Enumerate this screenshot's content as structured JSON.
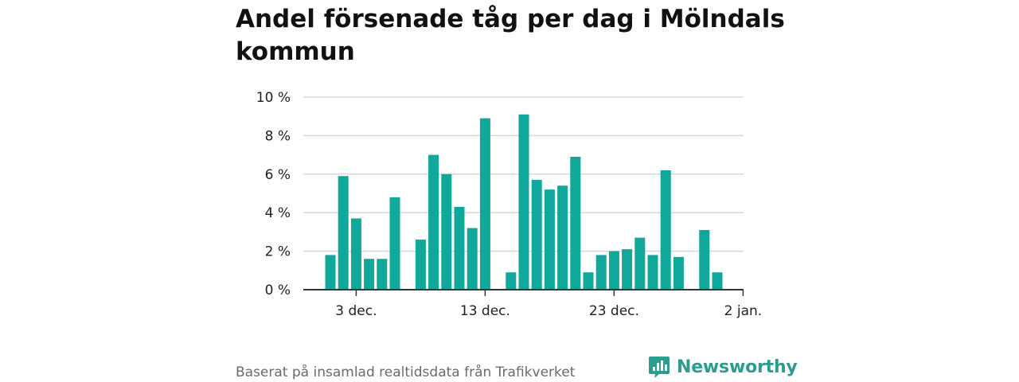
{
  "title": "Andel försenade tåg per dag i Mölndals kommun",
  "footer": {
    "source_text": "Baserat på insamlad realtidsdata från Trafikverket",
    "brand_name": "Newsworthy"
  },
  "colors": {
    "bar": "#0fa89a",
    "grid": "#d9d9d9",
    "axis": "#333333",
    "brand": "#2a9d8f"
  },
  "chart_data": {
    "type": "bar",
    "title": "Andel försenade tåg per dag i Mölndals kommun",
    "xlabel": "",
    "ylabel": "",
    "ylim": [
      0,
      10
    ],
    "y_ticks": [
      0,
      2,
      4,
      6,
      8,
      10
    ],
    "y_tick_labels": [
      "0 %",
      "2 %",
      "4 %",
      "6 %",
      "8 %",
      "10 %"
    ],
    "x_ticks": [
      {
        "date": "2023-12-03",
        "label": "3 dec."
      },
      {
        "date": "2023-12-13",
        "label": "13 dec."
      },
      {
        "date": "2023-12-23",
        "label": "23 dec."
      },
      {
        "date": "2024-01-02",
        "label": "2 jan."
      }
    ],
    "grid": true,
    "categories": [
      "2023-12-01",
      "2023-12-02",
      "2023-12-03",
      "2023-12-04",
      "2023-12-05",
      "2023-12-06",
      "2023-12-07",
      "2023-12-08",
      "2023-12-09",
      "2023-12-10",
      "2023-12-11",
      "2023-12-12",
      "2023-12-13",
      "2023-12-14",
      "2023-12-15",
      "2023-12-16",
      "2023-12-17",
      "2023-12-18",
      "2023-12-19",
      "2023-12-20",
      "2023-12-21",
      "2023-12-22",
      "2023-12-23",
      "2023-12-24",
      "2023-12-25",
      "2023-12-26",
      "2023-12-27",
      "2023-12-28",
      "2023-12-29",
      "2023-12-30",
      "2023-12-31",
      "2024-01-01"
    ],
    "values": [
      1.8,
      5.9,
      3.7,
      1.6,
      1.6,
      4.8,
      null,
      2.6,
      7.0,
      6.0,
      4.3,
      3.2,
      8.9,
      null,
      0.9,
      9.1,
      5.7,
      5.2,
      5.4,
      6.9,
      0.9,
      1.8,
      2.0,
      2.1,
      2.7,
      1.8,
      6.2,
      1.7,
      null,
      3.1,
      0.9,
      null
    ]
  }
}
